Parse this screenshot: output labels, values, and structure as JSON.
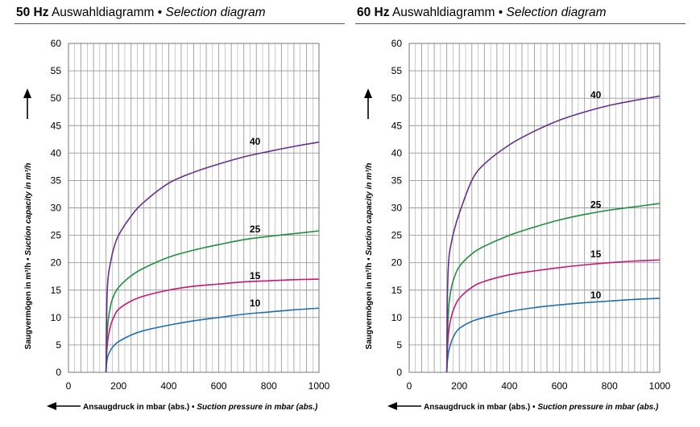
{
  "panels": [
    {
      "title_hz": "50 Hz",
      "title_de": " Auswahldiagramm • ",
      "title_en": "Selection diagram"
    },
    {
      "title_hz": "60 Hz",
      "title_de": " Auswahldiagramm • ",
      "title_en": "Selection diagram"
    }
  ],
  "axis_text": {
    "ylabel_de": "Saugvermögen in m³/h • ",
    "ylabel_en": "Suction capacity in m³/h",
    "xlabel_de": "Ansaugdruck in mbar (abs.) • ",
    "xlabel_en": "Suction pressure in mbar (abs.)"
  },
  "colors": {
    "10": "#1f6fae",
    "15": "#c4187a",
    "25": "#1e8f3c",
    "40": "#6a2d8f",
    "grid": "#9a9a9a"
  },
  "chart_data": [
    {
      "type": "line",
      "title": "50 Hz Auswahldiagramm • Selection diagram",
      "xlabel": "Ansaugdruck in mbar (abs.) • Suction pressure in mbar (abs.)",
      "ylabel": "Saugvermögen in m³/h • Suction capacity in m³/h",
      "xlim": [
        0,
        1000
      ],
      "ylim": [
        0,
        60
      ],
      "xticks": [
        0,
        200,
        400,
        600,
        800,
        1000
      ],
      "yticks": [
        0,
        5,
        10,
        15,
        20,
        25,
        30,
        35,
        40,
        45,
        50,
        55,
        60
      ],
      "grid": true,
      "series": [
        {
          "name": "10",
          "x": [
            150,
            152,
            155,
            160,
            170,
            180,
            200,
            250,
            300,
            400,
            500,
            600,
            700,
            800,
            900,
            1000
          ],
          "y": [
            0,
            1.5,
            2.5,
            3.3,
            4.2,
            4.8,
            5.6,
            6.8,
            7.6,
            8.6,
            9.4,
            10.0,
            10.6,
            11.0,
            11.4,
            11.7
          ]
        },
        {
          "name": "15",
          "x": [
            150,
            152,
            155,
            160,
            170,
            180,
            200,
            250,
            300,
            400,
            500,
            600,
            700,
            800,
            900,
            1000
          ],
          "y": [
            0,
            3.0,
            5.0,
            6.8,
            8.8,
            10.0,
            11.5,
            13.0,
            13.9,
            15.0,
            15.7,
            16.1,
            16.5,
            16.7,
            16.9,
            17.0
          ]
        },
        {
          "name": "25",
          "x": [
            150,
            152,
            155,
            160,
            170,
            180,
            200,
            250,
            300,
            400,
            500,
            600,
            700,
            800,
            900,
            1000
          ],
          "y": [
            0,
            4.5,
            7.5,
            10.0,
            12.5,
            13.9,
            15.5,
            17.6,
            19.0,
            21.0,
            22.3,
            23.3,
            24.2,
            24.8,
            25.3,
            25.8
          ]
        },
        {
          "name": "40",
          "x": [
            150,
            152,
            155,
            160,
            170,
            180,
            200,
            250,
            300,
            400,
            500,
            600,
            700,
            800,
            900,
            1000
          ],
          "y": [
            0,
            9.0,
            15.0,
            18.0,
            20.5,
            22.5,
            25.0,
            28.5,
            31.0,
            34.5,
            36.5,
            38.0,
            39.3,
            40.3,
            41.2,
            42.0
          ]
        }
      ],
      "labels": [
        {
          "text": "40",
          "x": 745,
          "y": 41.5
        },
        {
          "text": "25",
          "x": 745,
          "y": 25.5
        },
        {
          "text": "15",
          "x": 745,
          "y": 17.0
        },
        {
          "text": "10",
          "x": 745,
          "y": 12.0
        }
      ]
    },
    {
      "type": "line",
      "title": "60 Hz Auswahldiagramm • Selection diagram",
      "xlabel": "Ansaugdruck in mbar (abs.) • Suction pressure in mbar (abs.)",
      "ylabel": "Saugvermögen in m³/h • Suction capacity in m³/h",
      "xlim": [
        0,
        1000
      ],
      "ylim": [
        0,
        60
      ],
      "xticks": [
        0,
        200,
        400,
        600,
        800,
        1000
      ],
      "yticks": [
        0,
        5,
        10,
        15,
        20,
        25,
        30,
        35,
        40,
        45,
        50,
        55,
        60
      ],
      "grid": true,
      "series": [
        {
          "name": "10",
          "x": [
            150,
            152,
            155,
            160,
            170,
            180,
            200,
            250,
            300,
            400,
            500,
            600,
            700,
            800,
            900,
            1000
          ],
          "y": [
            0,
            1.8,
            3.0,
            4.3,
            5.8,
            6.8,
            8.0,
            9.3,
            10.0,
            11.1,
            11.8,
            12.3,
            12.7,
            13.0,
            13.3,
            13.5
          ]
        },
        {
          "name": "15",
          "x": [
            150,
            152,
            155,
            160,
            170,
            180,
            200,
            250,
            300,
            400,
            500,
            600,
            700,
            800,
            900,
            1000
          ],
          "y": [
            0,
            3.5,
            6.0,
            8.3,
            10.5,
            11.8,
            13.5,
            15.5,
            16.6,
            17.8,
            18.5,
            19.1,
            19.6,
            20.0,
            20.3,
            20.5
          ]
        },
        {
          "name": "25",
          "x": [
            150,
            152,
            155,
            160,
            170,
            180,
            200,
            250,
            300,
            400,
            500,
            600,
            700,
            800,
            900,
            1000
          ],
          "y": [
            0,
            6.0,
            9.5,
            13.0,
            15.8,
            17.3,
            19.3,
            21.6,
            23.0,
            25.0,
            26.5,
            27.8,
            28.8,
            29.6,
            30.2,
            30.8
          ]
        },
        {
          "name": "40",
          "x": [
            150,
            152,
            155,
            160,
            170,
            180,
            200,
            250,
            300,
            400,
            500,
            600,
            700,
            800,
            900,
            1000
          ],
          "y": [
            0,
            12.0,
            18.0,
            21.5,
            24.0,
            26.0,
            29.0,
            35.0,
            38.0,
            41.5,
            44.0,
            46.0,
            47.5,
            48.7,
            49.6,
            50.4
          ]
        }
      ],
      "labels": [
        {
          "text": "40",
          "x": 745,
          "y": 50.0
        },
        {
          "text": "25",
          "x": 745,
          "y": 30.0
        },
        {
          "text": "15",
          "x": 745,
          "y": 21.0
        },
        {
          "text": "10",
          "x": 745,
          "y": 13.5
        }
      ]
    }
  ]
}
